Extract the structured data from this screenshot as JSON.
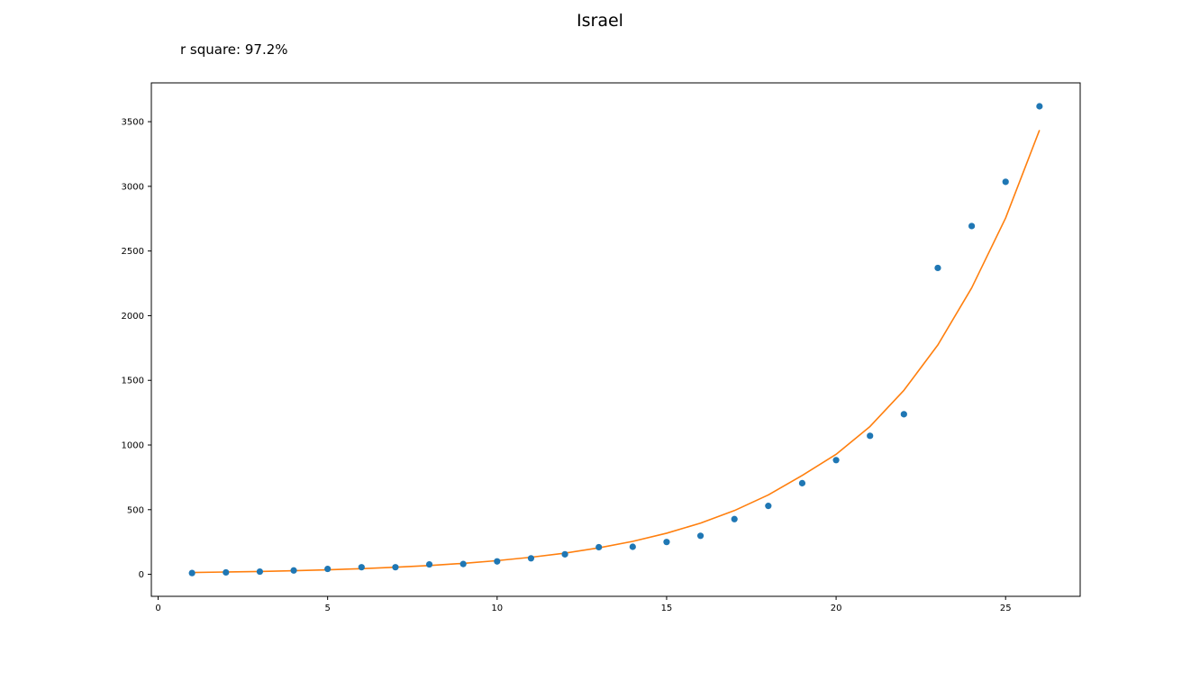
{
  "chart_data": {
    "type": "scatter",
    "title": "Israel",
    "annotation": "r square: 97.2%",
    "xlabel": "",
    "ylabel": "",
    "xlim": [
      -0.2,
      27.2
    ],
    "ylim": [
      -170,
      3800
    ],
    "x_ticks": [
      "0",
      "5",
      "10",
      "15",
      "20",
      "25"
    ],
    "y_ticks": [
      "0",
      "500",
      "1000",
      "1500",
      "2000",
      "2500",
      "3000",
      "3500"
    ],
    "grid": false,
    "series": [
      {
        "kind": "scatter",
        "color": "#1f77b4",
        "x": [
          1,
          2,
          3,
          4,
          5,
          6,
          7,
          8,
          9,
          10,
          11,
          12,
          13,
          14,
          15,
          16,
          17,
          18,
          19,
          20,
          21,
          22,
          23,
          24,
          25,
          26
        ],
        "y": [
          10,
          15,
          21,
          30,
          42,
          55,
          55,
          77,
          80,
          100,
          124,
          155,
          210,
          213,
          250,
          298,
          427,
          529,
          705,
          883,
          1071,
          1238,
          2369,
          2693,
          3035,
          3619
        ]
      },
      {
        "kind": "line",
        "color": "#ff7f0e",
        "x": [
          1,
          2,
          3,
          4,
          5,
          6,
          7,
          8,
          9,
          10,
          11,
          12,
          13,
          14,
          15,
          16,
          17,
          18,
          19,
          20,
          21,
          22,
          23,
          24,
          25,
          26
        ],
        "y": [
          14,
          18,
          22,
          28,
          35,
          44,
          55,
          68,
          85,
          106,
          132,
          164,
          205,
          255,
          318,
          396,
          493,
          614,
          765,
          928,
          1143,
          1423,
          1773,
          2215,
          2755,
          3435
        ]
      }
    ]
  }
}
